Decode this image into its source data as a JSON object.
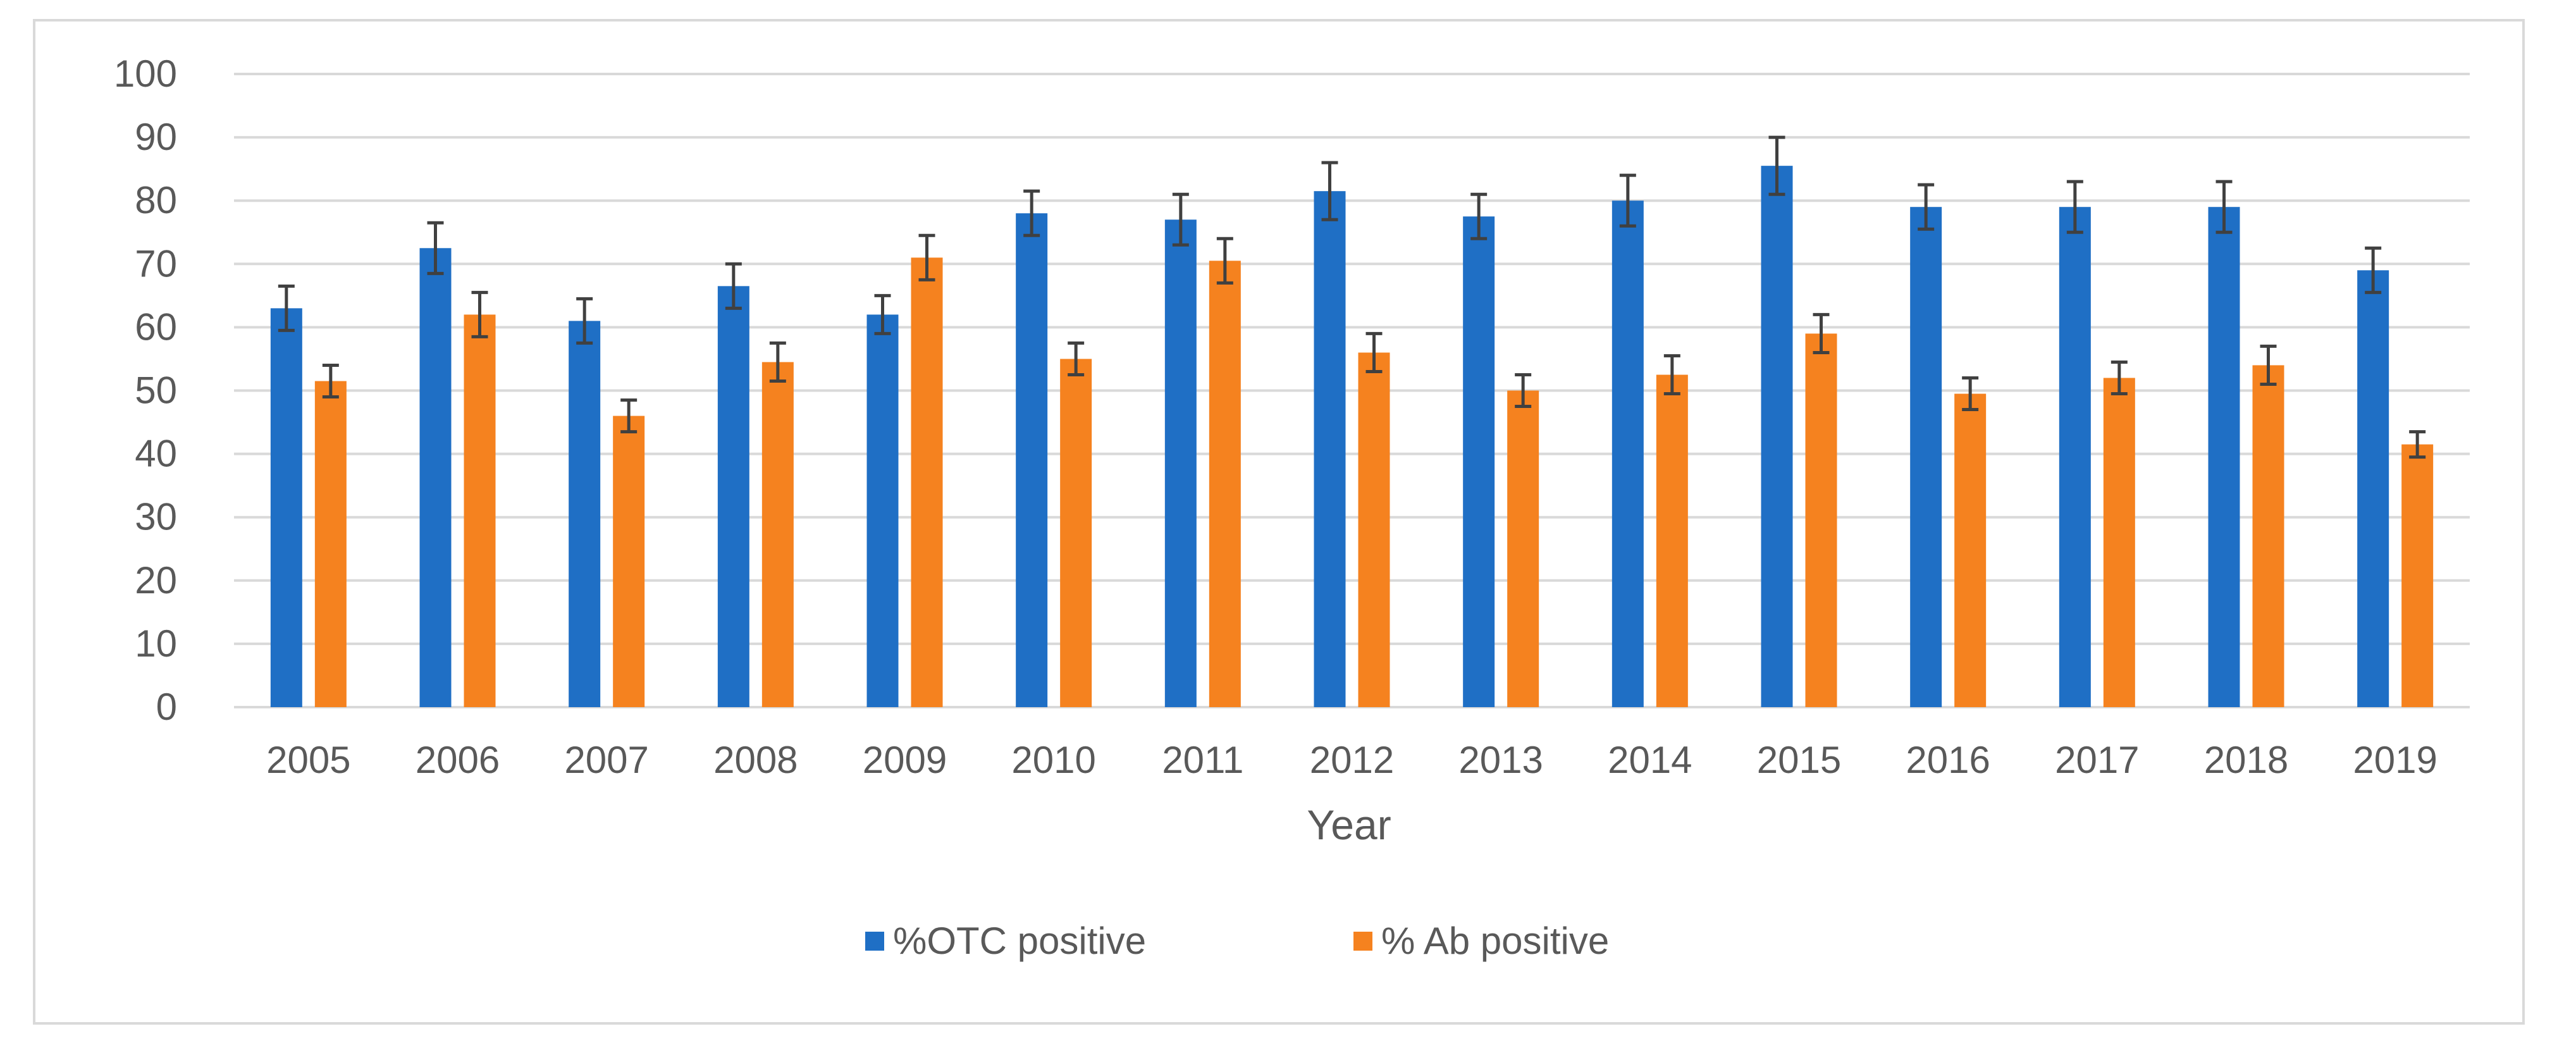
{
  "chart_data": {
    "type": "bar",
    "title": "",
    "xlabel": "Year",
    "ylabel": "",
    "ylim": [
      0,
      100
    ],
    "yticks": [
      0,
      10,
      20,
      30,
      40,
      50,
      60,
      70,
      80,
      90,
      100
    ],
    "grid": true,
    "legend_position": "bottom",
    "categories": [
      "2005",
      "2006",
      "2007",
      "2008",
      "2009",
      "2010",
      "2011",
      "2012",
      "2013",
      "2014",
      "2015",
      "2016",
      "2017",
      "2018",
      "2019"
    ],
    "series": [
      {
        "name": "%OTC positive",
        "color": "#1f6fc5",
        "values": [
          63,
          72.5,
          61,
          66.5,
          62,
          78,
          77,
          81.5,
          77.5,
          80,
          85.5,
          79,
          79,
          79,
          69
        ],
        "error": [
          3.5,
          4,
          3.5,
          3.5,
          3,
          3.5,
          4,
          4.5,
          3.5,
          4,
          4.5,
          3.5,
          4,
          4,
          3.5
        ]
      },
      {
        "name": "% Ab positive",
        "color": "#f5821f",
        "values": [
          51.5,
          62,
          46,
          54.5,
          71,
          55,
          70.5,
          56,
          50,
          52.5,
          59,
          49.5,
          52,
          54,
          41.5
        ],
        "error": [
          2.5,
          3.5,
          2.5,
          3,
          3.5,
          2.5,
          3.5,
          3,
          2.5,
          3,
          3,
          2.5,
          2.5,
          3,
          2
        ]
      }
    ]
  }
}
